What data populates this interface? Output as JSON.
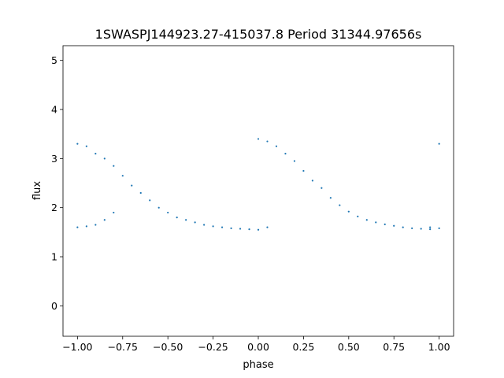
{
  "chart_data": {
    "type": "scatter",
    "title": "1SWASPJ144923.27-415037.8 Period 31344.97656s",
    "xlabel": "phase",
    "ylabel": "flux",
    "xlim": [
      -1.08,
      1.08
    ],
    "ylim": [
      -0.62,
      5.3
    ],
    "xticks": [
      -1.0,
      -0.75,
      -0.5,
      -0.25,
      0.0,
      0.25,
      0.5,
      0.75,
      1.0
    ],
    "xtick_labels": [
      "−1.00",
      "−0.75",
      "−0.50",
      "−0.25",
      "0.00",
      "0.25",
      "0.50",
      "0.75",
      "1.00"
    ],
    "yticks": [
      0,
      1,
      2,
      3,
      4,
      5
    ],
    "ytick_labels": [
      "0",
      "1",
      "2",
      "3",
      "4",
      "5"
    ],
    "grid": false,
    "marker_color": "#1f77b4",
    "series": [
      {
        "x": [
          -1.0,
          -0.95,
          -0.9,
          -0.85,
          -0.8,
          -0.75,
          -0.7,
          -0.65,
          -0.6,
          -0.55,
          -0.5,
          -0.45,
          -0.4,
          -0.35,
          -0.3,
          -0.25,
          -0.2,
          -0.15,
          -0.1,
          -0.05,
          0.0,
          0.05,
          0.1,
          0.15,
          0.2,
          0.25,
          0.3,
          0.35,
          0.4,
          0.45,
          0.5,
          0.55,
          0.6,
          0.65,
          0.7,
          0.75,
          0.8,
          0.85,
          0.9,
          0.95,
          1.0
        ],
        "y": [
          3.3,
          3.25,
          3.1,
          3.0,
          2.85,
          2.65,
          2.45,
          2.3,
          2.15,
          2.0,
          1.9,
          1.8,
          1.75,
          1.7,
          1.65,
          1.62,
          1.6,
          1.58,
          1.57,
          1.56,
          3.4,
          3.35,
          3.25,
          3.1,
          2.95,
          2.75,
          2.55,
          2.4,
          2.2,
          2.05,
          1.92,
          1.82,
          1.75,
          1.7,
          1.66,
          1.63,
          1.6,
          1.58,
          1.57,
          1.56,
          3.3
        ]
      },
      {
        "x": [
          -1.0,
          -0.95,
          -0.9,
          -0.85,
          -0.8,
          0.0,
          0.05,
          0.95,
          1.0
        ],
        "y": [
          1.6,
          1.62,
          1.65,
          1.75,
          1.9,
          1.55,
          1.6,
          1.6,
          1.58
        ]
      }
    ]
  }
}
